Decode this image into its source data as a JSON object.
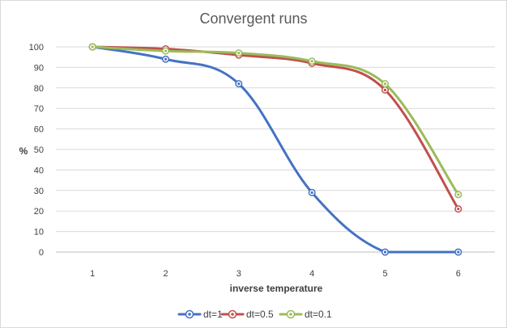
{
  "chart_data": {
    "type": "line",
    "title": "Convergent runs",
    "xlabel": "inverse temperature",
    "ylabel": "%",
    "x": [
      1,
      2,
      3,
      4,
      5,
      6
    ],
    "xticks": [
      "1",
      "2",
      "3",
      "4",
      "5",
      "6"
    ],
    "ylim": [
      0,
      100
    ],
    "yticks": [
      "0",
      "10",
      "20",
      "30",
      "40",
      "50",
      "60",
      "70",
      "80",
      "90",
      "100"
    ],
    "grid": true,
    "legend_position": "bottom",
    "series": [
      {
        "name": "dt=1",
        "color": "#4472c4",
        "values": [
          100,
          94,
          82,
          29,
          0,
          0
        ]
      },
      {
        "name": "dt=0.5",
        "color": "#c0504d",
        "values": [
          100,
          99,
          96,
          92,
          79,
          21
        ]
      },
      {
        "name": "dt=0.1",
        "color": "#9bbb59",
        "values": [
          100,
          98,
          97,
          93,
          82,
          28
        ]
      }
    ]
  }
}
